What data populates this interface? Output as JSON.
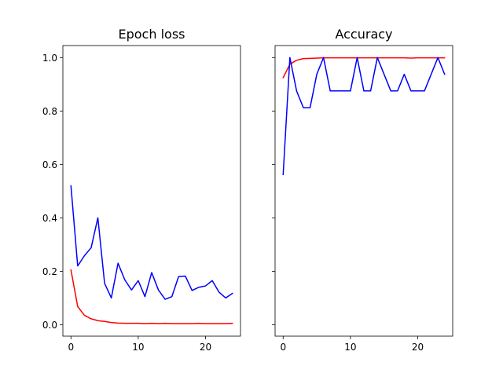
{
  "chart_data": [
    {
      "type": "line",
      "title": "Epoch loss",
      "xlabel": "",
      "ylabel": "",
      "xlim": [
        -1.2,
        25.2
      ],
      "ylim": [
        -0.043,
        1.045
      ],
      "xticks": [
        0,
        10,
        20
      ],
      "yticks": [
        0.0,
        0.2,
        0.4,
        0.6,
        0.8,
        1.0
      ],
      "ytick_labels": [
        "0.0",
        "0.2",
        "0.4",
        "0.6",
        "0.8",
        "1.0"
      ],
      "show_ytick_labels": true,
      "grid": false,
      "legend": "none",
      "x": [
        0,
        1,
        2,
        3,
        4,
        5,
        6,
        7,
        8,
        9,
        10,
        11,
        12,
        13,
        14,
        15,
        16,
        17,
        18,
        19,
        20,
        21,
        22,
        23,
        24
      ],
      "series": [
        {
          "color": "#ff0000",
          "values": [
            0.205,
            0.068,
            0.035,
            0.022,
            0.015,
            0.012,
            0.008,
            0.006,
            0.005,
            0.005,
            0.005,
            0.004,
            0.005,
            0.004,
            0.005,
            0.004,
            0.004,
            0.004,
            0.004,
            0.005,
            0.004,
            0.004,
            0.004,
            0.004,
            0.005
          ]
        },
        {
          "color": "#0000ff",
          "values": [
            0.52,
            0.22,
            0.258,
            0.288,
            0.4,
            0.155,
            0.1,
            0.23,
            0.168,
            0.13,
            0.165,
            0.105,
            0.195,
            0.13,
            0.095,
            0.105,
            0.18,
            0.182,
            0.128,
            0.14,
            0.145,
            0.165,
            0.122,
            0.1,
            0.117
          ]
        }
      ]
    },
    {
      "type": "line",
      "title": "Accuracy",
      "xlabel": "",
      "ylabel": "",
      "xlim": [
        -1.2,
        25.2
      ],
      "ylim": [
        -0.043,
        1.045
      ],
      "xticks": [
        0,
        10,
        20
      ],
      "yticks": [
        0.0,
        0.2,
        0.4,
        0.6,
        0.8,
        1.0
      ],
      "ytick_labels": [],
      "show_ytick_labels": false,
      "grid": false,
      "legend": "none",
      "x": [
        0,
        1,
        2,
        3,
        4,
        5,
        6,
        7,
        8,
        9,
        10,
        11,
        12,
        13,
        14,
        15,
        16,
        17,
        18,
        19,
        20,
        21,
        22,
        23,
        24
      ],
      "series": [
        {
          "color": "#ff0000",
          "values": [
            0.925,
            0.975,
            0.99,
            0.996,
            0.997,
            0.998,
            0.999,
            0.999,
            0.999,
            0.999,
            0.999,
            0.999,
            0.999,
            0.999,
            0.999,
            0.999,
            0.999,
            0.999,
            0.999,
            0.998,
            0.999,
            0.999,
            0.999,
            0.999,
            0.999
          ]
        },
        {
          "color": "#0000ff",
          "values": [
            0.562,
            1.0,
            0.875,
            0.8125,
            0.8125,
            0.9375,
            1.0,
            0.875,
            0.875,
            0.875,
            0.875,
            1.0,
            0.875,
            0.875,
            1.0,
            0.9375,
            0.875,
            0.875,
            0.9375,
            0.875,
            0.875,
            0.875,
            0.9375,
            1.0,
            0.9375
          ]
        }
      ]
    }
  ]
}
